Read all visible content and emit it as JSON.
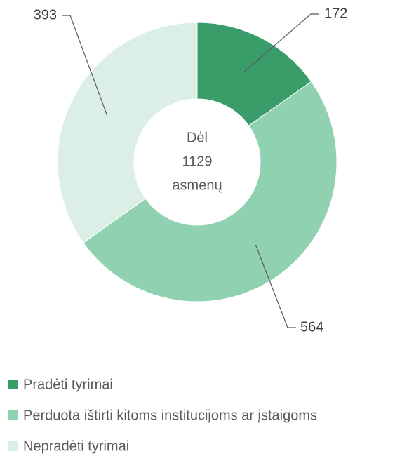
{
  "chart_data": {
    "type": "donut",
    "categories": [
      "Pradėti tyrimai",
      "Perduota ištirti kitoms institucijoms ar įstaigoms",
      "Nepradėti tyrimai"
    ],
    "values": [
      172,
      564,
      393
    ],
    "colors": [
      "#3a9c68",
      "#8fd1b1",
      "#dcefe6"
    ],
    "center_text": [
      "Dėl",
      "1129",
      "asmenų"
    ],
    "legend": "bottom-left"
  }
}
